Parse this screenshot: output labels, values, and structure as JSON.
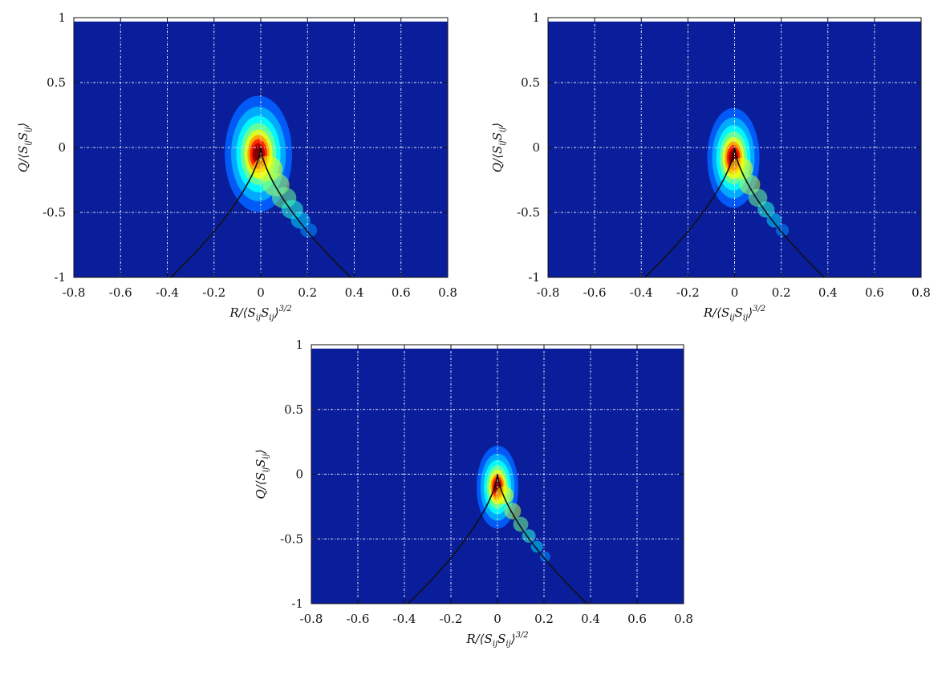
{
  "chart_data": [
    {
      "type": "heatmap",
      "xlabel": "R/⟨SijSij⟩3/2",
      "ylabel": "Q/⟨SijSij⟩",
      "xlim": [
        -0.8,
        0.8
      ],
      "ylim": [
        -1,
        1
      ],
      "x_ticks": [
        "-0.8",
        "-0.6",
        "-0.4",
        "-0.2",
        "0",
        "0.2",
        "0.4",
        "0.6",
        "0.8"
      ],
      "y_ticks": [
        "-1",
        "-0.5",
        "0",
        "0.5",
        "1"
      ],
      "grid": true,
      "colormap": "jet",
      "density_peak": {
        "x": -0.01,
        "y": -0.05
      },
      "density_spread": {
        "x": 0.045,
        "y": 0.14
      },
      "curve": "Q = -(27R^2/4)^(1/3)"
    },
    {
      "type": "heatmap",
      "xlabel": "R/⟨SijSij⟩3/2",
      "ylabel": "Q/⟨SijSij⟩",
      "xlim": [
        -0.8,
        0.8
      ],
      "ylim": [
        -1,
        1
      ],
      "x_ticks": [
        "-0.8",
        "-0.6",
        "-0.4",
        "-0.2",
        "0",
        "0.2",
        "0.4",
        "0.6",
        "0.8"
      ],
      "y_ticks": [
        "-1",
        "-0.5",
        "0",
        "0.5",
        "1"
      ],
      "grid": true,
      "colormap": "jet",
      "density_peak": {
        "x": -0.005,
        "y": -0.08
      },
      "density_spread": {
        "x": 0.035,
        "y": 0.12
      },
      "curve": "Q = -(27R^2/4)^(1/3)"
    },
    {
      "type": "heatmap",
      "xlabel": "R/⟨SijSij⟩3/2",
      "ylabel": "Q/⟨SijSij⟩",
      "xlim": [
        -0.8,
        0.8
      ],
      "ylim": [
        -1,
        1
      ],
      "x_ticks": [
        "-0.8",
        "-0.6",
        "-0.4",
        "-0.2",
        "0",
        "0.2",
        "0.4",
        "0.6",
        "0.8"
      ],
      "y_ticks": [
        "-1",
        "-0.5",
        "0",
        "0.5",
        "1"
      ],
      "grid": true,
      "colormap": "jet",
      "density_peak": {
        "x": 0.0,
        "y": -0.1
      },
      "density_spread": {
        "x": 0.028,
        "y": 0.1
      },
      "curve": "Q = -(27R^2/4)^(1/3)"
    }
  ]
}
